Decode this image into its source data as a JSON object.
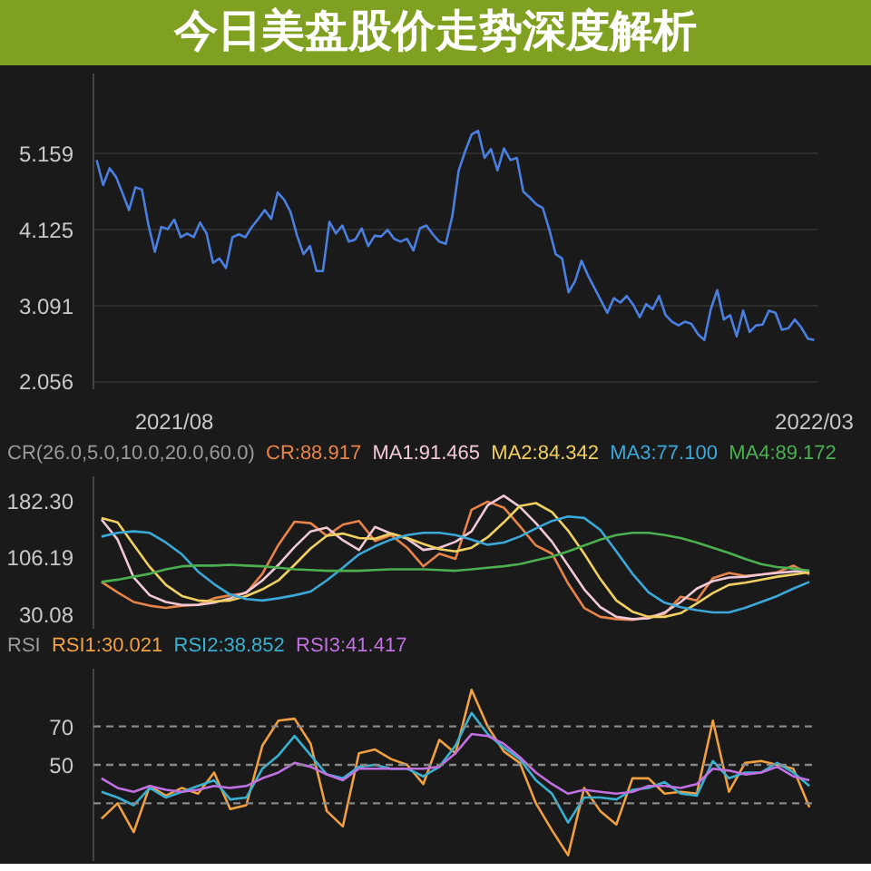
{
  "chart_data": [
    {
      "type": "line",
      "title": "今日美盘股价走势深度解析",
      "categories": [
        null,
        null,
        null,
        null,
        null,
        null,
        null,
        null,
        null,
        null,
        null,
        null,
        "2021/08",
        null,
        null,
        null,
        null,
        null,
        null,
        null,
        null,
        null,
        null,
        null,
        null,
        null,
        null,
        null,
        null,
        null,
        null,
        null,
        null,
        null,
        null,
        null,
        null,
        null,
        null,
        null,
        null,
        null,
        null,
        null,
        null,
        null,
        null,
        null,
        null,
        null,
        null,
        null,
        null,
        null,
        null,
        null,
        null,
        null,
        null,
        null,
        null,
        null,
        null,
        null,
        null,
        null,
        null,
        null,
        null,
        null,
        null,
        null,
        null,
        null,
        null,
        null,
        null,
        null,
        null,
        null,
        null,
        null,
        null,
        null,
        null,
        null,
        null,
        null,
        null,
        null,
        null,
        null,
        null,
        null,
        null,
        null,
        null,
        null,
        null,
        null,
        null,
        null,
        null,
        null,
        null,
        null,
        null,
        null,
        null,
        null,
        null,
        "2022/03"
      ],
      "ylim": [
        1.95,
        6.25
      ],
      "yticks": [
        2.056,
        3.091,
        4.125,
        5.159
      ],
      "grid": "y",
      "series": [
        {
          "color": "#4a7fe0",
          "values": [
            5.07,
            4.73,
            4.96,
            4.84,
            4.62,
            4.39,
            4.7,
            4.67,
            4.19,
            3.82,
            4.16,
            4.13,
            4.26,
            4.02,
            4.07,
            4.02,
            4.22,
            4.07,
            3.67,
            3.73,
            3.6,
            4.02,
            4.06,
            4.02,
            4.16,
            4.27,
            4.39,
            4.27,
            4.63,
            4.53,
            4.36,
            4.04,
            3.79,
            3.9,
            3.56,
            3.56,
            4.23,
            4.07,
            4.18,
            3.96,
            3.99,
            4.14,
            3.9,
            4.04,
            4.03,
            4.12,
            4.0,
            3.96,
            4.0,
            3.84,
            4.14,
            4.18,
            4.06,
            3.96,
            3.93,
            4.3,
            4.93,
            5.19,
            5.42,
            5.47,
            5.1,
            5.22,
            4.93,
            5.23,
            5.07,
            5.1,
            4.64,
            4.56,
            4.47,
            4.42,
            4.13,
            3.79,
            3.73,
            3.27,
            3.42,
            3.7,
            3.5,
            3.33,
            3.16,
            2.99,
            3.19,
            3.13,
            3.22,
            3.1,
            2.93,
            3.11,
            3.04,
            3.22,
            2.96,
            2.87,
            2.82,
            2.87,
            2.84,
            2.7,
            2.62,
            3.04,
            3.3,
            2.9,
            2.96,
            2.67,
            3.02,
            2.73,
            2.82,
            2.83,
            3.02,
            2.99,
            2.76,
            2.78,
            2.9,
            2.79,
            2.64,
            2.62
          ]
        }
      ]
    },
    {
      "type": "line",
      "title": "CR(26.0,5.0,10.0,20.0,60.0)",
      "categories": [
        null,
        null,
        null,
        null,
        null,
        null,
        null,
        null,
        null,
        null,
        null,
        null,
        null,
        null,
        null,
        null,
        null,
        null,
        null,
        null,
        null,
        null,
        null,
        null,
        null,
        null,
        null,
        null,
        null,
        null,
        null,
        null,
        null,
        null,
        null,
        null,
        null,
        null,
        null,
        null,
        null,
        null,
        null,
        null,
        null
      ],
      "ylim": [
        10,
        215
      ],
      "yticks": [
        30.08,
        106.19,
        {
          "value": 182.3,
          "label": "182.30"
        }
      ],
      "tick_labels": "y",
      "legend": "top",
      "series": [
        {
          "name": "CR:88.917",
          "color": "#e8834a",
          "values": [
            73,
            59,
            46,
            41,
            38,
            41,
            42,
            51,
            55,
            58,
            84,
            123,
            154,
            152,
            135,
            150,
            155,
            128,
            136,
            119,
            94,
            111,
            104,
            170,
            181,
            173,
            148,
            122,
            111,
            71,
            38,
            26,
            23,
            22,
            26,
            30,
            53,
            48,
            78,
            85,
            81,
            83,
            86,
            95,
            83
          ]
        },
        {
          "name": "MA1:91.465",
          "color": "#f0c8d8",
          "values": [
            157,
            130,
            79,
            55,
            46,
            42,
            42,
            45,
            51,
            59,
            75,
            96,
            120,
            141,
            146,
            129,
            116,
            147,
            138,
            131,
            116,
            119,
            127,
            141,
            176,
            189,
            174,
            152,
            127,
            95,
            63,
            39,
            26,
            23,
            24,
            32,
            46,
            64,
            74,
            79,
            80,
            83,
            85,
            87,
            88
          ]
        },
        {
          "name": "MA2:84.342",
          "color": "#f0d060",
          "values": [
            159,
            153,
            123,
            93,
            69,
            54,
            48,
            47,
            48,
            54,
            63,
            75,
            96,
            118,
            135,
            138,
            132,
            131,
            138,
            132,
            124,
            117,
            114,
            119,
            133,
            153,
            175,
            179,
            167,
            142,
            111,
            77,
            48,
            33,
            26,
            26,
            31,
            44,
            58,
            69,
            72,
            76,
            80,
            83,
            86
          ]
        },
        {
          "name": "MA3:77.100",
          "color": "#3ca8d8",
          "values": [
            134,
            139,
            141,
            139,
            126,
            110,
            87,
            70,
            56,
            50,
            48,
            51,
            55,
            60,
            75,
            92,
            110,
            121,
            130,
            136,
            139,
            139,
            136,
            130,
            123,
            126,
            134,
            145,
            155,
            161,
            159,
            143,
            114,
            84,
            59,
            45,
            39,
            35,
            32,
            32,
            38,
            46,
            54,
            64,
            73
          ]
        },
        {
          "name": "MA4:89.172",
          "color": "#4caf50",
          "values": [
            73,
            76,
            80,
            84,
            90,
            94,
            95,
            95,
            96,
            95,
            94,
            92,
            90,
            89,
            88,
            88,
            88,
            89,
            90,
            90,
            90,
            89,
            88,
            90,
            92,
            94,
            97,
            102,
            107,
            114,
            122,
            130,
            136,
            139,
            139,
            136,
            132,
            126,
            119,
            112,
            104,
            97,
            93,
            91,
            88
          ]
        }
      ]
    },
    {
      "type": "line",
      "title": "RSI",
      "categories": [
        null,
        null,
        null,
        null,
        null,
        null,
        null,
        null,
        null,
        null,
        null,
        null,
        null,
        null,
        null,
        null,
        null,
        null,
        null,
        null,
        null,
        null,
        null,
        null,
        null,
        null,
        null,
        null,
        null,
        null,
        null,
        null,
        null,
        null,
        null,
        null,
        null,
        null,
        null,
        null,
        null,
        null,
        null,
        null,
        null
      ],
      "ylim": [
        0,
        100
      ],
      "yticks": [
        50,
        70
      ],
      "tick_labels": "y",
      "legend": "top",
      "ref_lines": [
        {
          "axis": "y",
          "value": 70,
          "color": "#888888",
          "line_style": "dashed"
        },
        {
          "axis": "y",
          "value": 50,
          "color": "#888888",
          "line_style": "dashed"
        },
        {
          "axis": "y",
          "value": 30,
          "color": "#888888",
          "line_style": "dashed"
        }
      ],
      "series": [
        {
          "name": "RSI1:30.021",
          "color": "#f0a040",
          "values": [
            22,
            30,
            15,
            39,
            34,
            38,
            35,
            46,
            27,
            29,
            60,
            73,
            74,
            61,
            26,
            18,
            56,
            58,
            53,
            50,
            40,
            63,
            56,
            89,
            70,
            57,
            51,
            30,
            16,
            3,
            38,
            26,
            19,
            43,
            43,
            35,
            36,
            35,
            73,
            36,
            51,
            52,
            50,
            48,
            28
          ]
        },
        {
          "name": "RSI2:38.852",
          "color": "#3ab0d0",
          "values": [
            36,
            33,
            29,
            38,
            33,
            36,
            39,
            42,
            32,
            33,
            48,
            55,
            65,
            55,
            45,
            43,
            49,
            50,
            48,
            48,
            44,
            49,
            60,
            77,
            66,
            59,
            53,
            42,
            35,
            20,
            33,
            33,
            32,
            37,
            38,
            41,
            35,
            34,
            52,
            43,
            46,
            46,
            51,
            46,
            39
          ]
        },
        {
          "name": "RSI3:41.417",
          "color": "#c070e0",
          "values": [
            43,
            38,
            36,
            39,
            37,
            36,
            37,
            39,
            38,
            39,
            43,
            46,
            51,
            49,
            45,
            42,
            48,
            48,
            48,
            48,
            48,
            49,
            56,
            66,
            65,
            61,
            54,
            46,
            40,
            35,
            37,
            36,
            35,
            36,
            39,
            39,
            38,
            40,
            48,
            47,
            45,
            46,
            49,
            44,
            42
          ]
        }
      ]
    }
  ]
}
